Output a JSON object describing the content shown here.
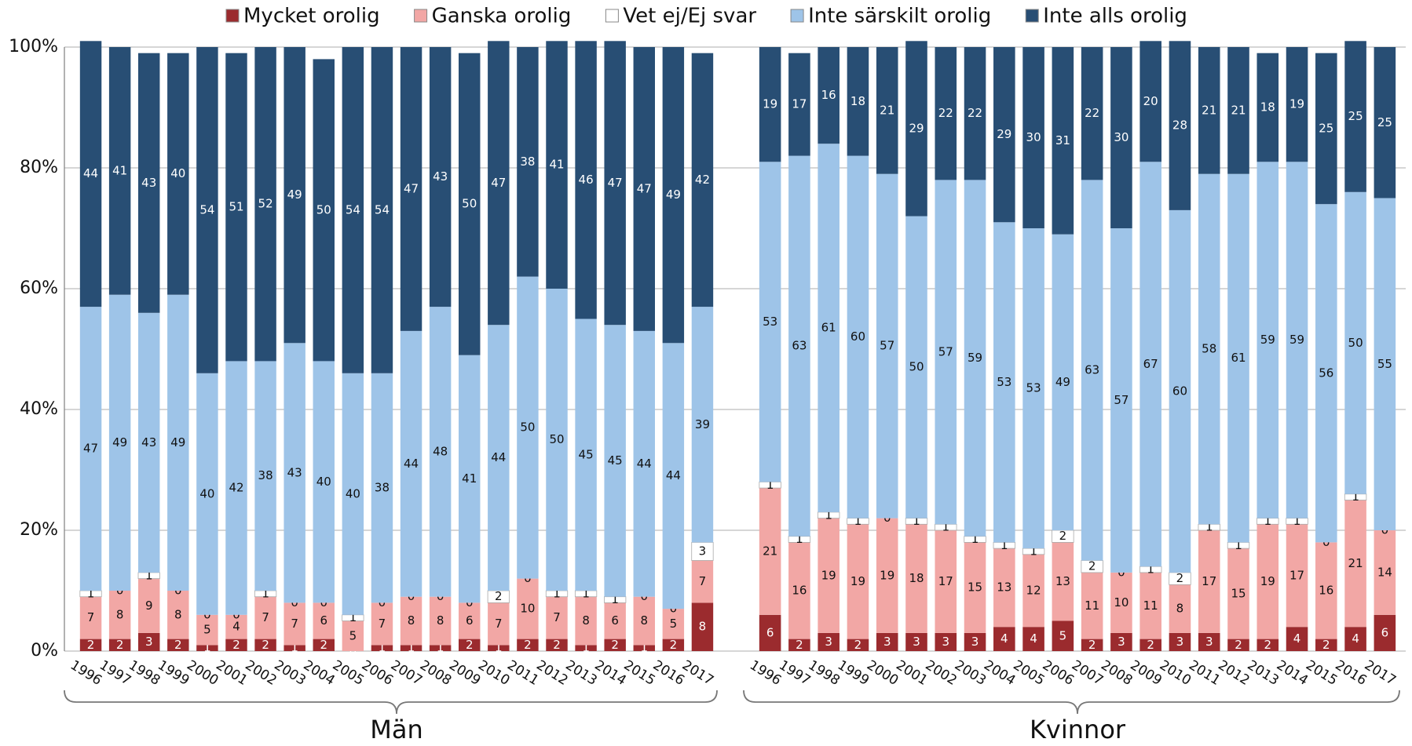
{
  "chart_data": {
    "type": "bar",
    "stacked": true,
    "grid": true,
    "legend": "top",
    "ylim": [
      0,
      100
    ],
    "yticks": [
      {
        "value": 0,
        "label": "0%"
      },
      {
        "value": 20,
        "label": "20%"
      },
      {
        "value": 40,
        "label": "40%"
      },
      {
        "value": 60,
        "label": "60%"
      },
      {
        "value": 80,
        "label": "80%"
      },
      {
        "value": 100,
        "label": "100%"
      }
    ],
    "series": [
      {
        "name": "Mycket orolig",
        "color": "#9b2b2e"
      },
      {
        "name": "Ganska orolig",
        "color": "#f2a7a5"
      },
      {
        "name": "Vet ej/Ej svar",
        "color": "#ffffff"
      },
      {
        "name": "Inte särskilt orolig",
        "color": "#9ec4e8"
      },
      {
        "name": "Inte alls orolig",
        "color": "#284e74"
      }
    ],
    "groups": [
      {
        "name": "Män",
        "categories": [
          "1996",
          "1997",
          "1998",
          "1999",
          "2000",
          "2001",
          "2002",
          "2003",
          "2004",
          "2005",
          "2006",
          "2007",
          "2008",
          "2009",
          "2010",
          "2011",
          "2012",
          "2013",
          "2014",
          "2015",
          "2016",
          "2017"
        ],
        "values": [
          [
            2,
            2,
            3,
            2,
            1,
            2,
            2,
            1,
            2,
            0,
            1,
            1,
            1,
            2,
            1,
            2,
            2,
            1,
            2,
            1,
            2,
            8
          ],
          [
            7,
            8,
            9,
            8,
            5,
            4,
            7,
            7,
            6,
            5,
            7,
            8,
            8,
            6,
            7,
            10,
            7,
            8,
            6,
            8,
            5,
            7
          ],
          [
            1,
            0,
            1,
            0,
            0,
            0,
            1,
            0,
            0,
            1,
            0,
            0,
            0,
            0,
            2,
            0,
            1,
            1,
            1,
            0,
            0,
            3
          ],
          [
            47,
            49,
            43,
            49,
            40,
            42,
            38,
            43,
            40,
            40,
            38,
            44,
            48,
            41,
            44,
            50,
            50,
            45,
            45,
            44,
            44,
            39
          ],
          [
            44,
            41,
            43,
            40,
            54,
            51,
            52,
            49,
            50,
            54,
            54,
            47,
            43,
            50,
            47,
            38,
            41,
            46,
            47,
            47,
            49,
            42
          ]
        ]
      },
      {
        "name": "Kvinnor",
        "categories": [
          "1996",
          "1997",
          "1998",
          "1999",
          "2000",
          "2001",
          "2002",
          "2003",
          "2004",
          "2005",
          "2006",
          "2007",
          "2008",
          "2009",
          "2010",
          "2011",
          "2012",
          "2013",
          "2014",
          "2015",
          "2016",
          "2017"
        ],
        "values": [
          [
            6,
            2,
            3,
            2,
            3,
            3,
            3,
            3,
            4,
            4,
            5,
            2,
            3,
            2,
            3,
            3,
            2,
            2,
            4,
            2,
            4,
            6
          ],
          [
            21,
            16,
            19,
            19,
            19,
            18,
            17,
            15,
            13,
            12,
            13,
            11,
            10,
            11,
            8,
            17,
            15,
            19,
            17,
            16,
            21,
            14
          ],
          [
            1,
            1,
            1,
            1,
            0,
            1,
            1,
            1,
            1,
            1,
            2,
            2,
            0,
            1,
            2,
            1,
            1,
            1,
            1,
            0,
            1,
            0
          ],
          [
            53,
            63,
            61,
            60,
            57,
            50,
            57,
            59,
            53,
            53,
            49,
            63,
            57,
            67,
            60,
            58,
            61,
            59,
            59,
            56,
            50,
            55
          ],
          [
            19,
            17,
            16,
            18,
            21,
            29,
            22,
            22,
            29,
            30,
            31,
            22,
            30,
            20,
            28,
            21,
            21,
            18,
            19,
            25,
            25,
            25
          ]
        ]
      }
    ]
  }
}
